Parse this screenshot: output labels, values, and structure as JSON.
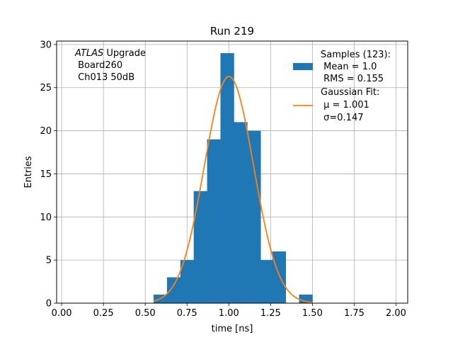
{
  "chart_data": {
    "type": "bar",
    "title": "Run 219",
    "xlabel": "time [ns]",
    "ylabel": "Entries",
    "xlim": [
      -0.03,
      2.07
    ],
    "ylim": [
      0,
      30.4
    ],
    "grid": true,
    "x_ticks": [
      "0.00",
      "0.25",
      "0.50",
      "0.75",
      "1.00",
      "1.25",
      "1.50",
      "1.75",
      "2.00"
    ],
    "y_ticks": [
      "0",
      "5",
      "10",
      "15",
      "20",
      "25",
      "30"
    ],
    "histogram": {
      "name": "Samples (123):",
      "color": "#1f77b4",
      "bins": [
        {
          "x0": 0.55,
          "x1": 0.63,
          "count": 1
        },
        {
          "x0": 0.63,
          "x1": 0.71,
          "count": 3
        },
        {
          "x0": 0.71,
          "x1": 0.79,
          "count": 5
        },
        {
          "x0": 0.79,
          "x1": 0.87,
          "count": 13
        },
        {
          "x0": 0.87,
          "x1": 0.95,
          "count": 19
        },
        {
          "x0": 0.95,
          "x1": 1.03,
          "count": 29
        },
        {
          "x0": 1.03,
          "x1": 1.11,
          "count": 21
        },
        {
          "x0": 1.11,
          "x1": 1.19,
          "count": 20
        },
        {
          "x0": 1.19,
          "x1": 1.26,
          "count": 5
        },
        {
          "x0": 1.26,
          "x1": 1.34,
          "count": 6
        },
        {
          "x0": 1.34,
          "x1": 1.42,
          "count": 0
        },
        {
          "x0": 1.42,
          "x1": 1.5,
          "count": 1
        }
      ]
    },
    "fit": {
      "name": "Gaussian Fit:",
      "color": "#ff7f0e",
      "mu": 1.001,
      "sigma": 0.147,
      "peak": 26.3,
      "x_range": [
        0.55,
        1.5
      ]
    },
    "legend": {
      "position": "top-right",
      "samples_lines": [
        "Samples (123):",
        " Mean = 1.0",
        " RMS = 0.155"
      ],
      "fit_lines": [
        "Gaussian Fit:",
        " μ = 1.001",
        " σ=0.147"
      ]
    },
    "annotation": {
      "italic": "ATLAS",
      "rest": " Upgrade",
      "lines": [
        " Board260",
        " Ch013 50dB"
      ]
    }
  }
}
